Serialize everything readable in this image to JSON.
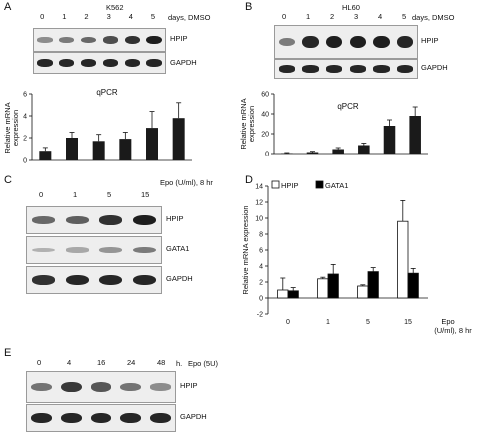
{
  "panels": {
    "A": {
      "letter": "A",
      "cell_line": "K562",
      "lanes": [
        "0",
        "1",
        "2",
        "3",
        "4",
        "5"
      ],
      "condition_label": "days, DMSO",
      "blots": [
        {
          "label": "HPIP",
          "intensities": [
            0.35,
            0.45,
            0.55,
            0.7,
            0.85,
            0.95
          ]
        },
        {
          "label": "GAPDH",
          "intensities": [
            0.9,
            0.9,
            0.9,
            0.9,
            0.9,
            0.9
          ]
        }
      ],
      "chart_title": "qPCR",
      "ylabel_line1": "Relative mRNA",
      "ylabel_line2": "expression"
    },
    "B": {
      "letter": "B",
      "cell_line": "HL60",
      "lanes": [
        "0",
        "1",
        "2",
        "3",
        "4",
        "5"
      ],
      "condition_label": "days, DMSO",
      "blots": [
        {
          "label": "HPIP",
          "intensities": [
            0.45,
            0.9,
            0.95,
            0.95,
            0.95,
            0.9
          ]
        },
        {
          "label": "GAPDH",
          "intensities": [
            0.9,
            0.9,
            0.9,
            0.9,
            0.9,
            0.9
          ]
        }
      ],
      "chart_title": "qPCR",
      "ylabel_line1": "Relative mRNA",
      "ylabel_line2": "expression"
    },
    "C": {
      "letter": "C",
      "lanes": [
        "0",
        "1",
        "5",
        "15"
      ],
      "condition_label": "Epo (U/ml), 8 hr",
      "blots": [
        {
          "label": "HPIP",
          "intensities": [
            0.55,
            0.6,
            0.85,
            0.95
          ]
        },
        {
          "label": "GATA1",
          "intensities": [
            0.15,
            0.2,
            0.3,
            0.45
          ]
        },
        {
          "label": "GAPDH",
          "intensities": [
            0.85,
            0.9,
            0.9,
            0.9
          ]
        }
      ]
    },
    "D": {
      "letter": "D",
      "ylabel": "Relative mRNA expression",
      "xlabel_line1": "Epo",
      "xlabel_line2": "(U/ml), 8 hr"
    },
    "E": {
      "letter": "E",
      "lanes": [
        "0",
        "4",
        "16",
        "24",
        "48"
      ],
      "time_unit": "h.",
      "condition_label": "Epo (5U)",
      "blots": [
        {
          "label": "HPIP",
          "intensities": [
            0.5,
            0.8,
            0.65,
            0.5,
            0.35
          ]
        },
        {
          "label": "GAPDH",
          "intensities": [
            0.9,
            0.9,
            0.9,
            0.9,
            0.9
          ]
        }
      ]
    }
  },
  "chart_data": [
    {
      "panel": "A",
      "type": "bar",
      "categories": [
        "0",
        "1",
        "2",
        "3",
        "4",
        "5"
      ],
      "values": [
        0.8,
        2.0,
        1.7,
        1.9,
        2.9,
        3.8
      ],
      "errors": [
        0.3,
        0.5,
        0.6,
        0.6,
        1.5,
        1.4
      ],
      "title": "qPCR",
      "ylabel": "Relative mRNA expression",
      "ylim": [
        0,
        6
      ],
      "yticks": [
        0,
        2,
        4,
        6
      ],
      "color": "#1a1a1a"
    },
    {
      "panel": "B",
      "type": "bar",
      "categories": [
        "0",
        "1",
        "2",
        "3",
        "4",
        "5"
      ],
      "values": [
        0.5,
        1.5,
        4.5,
        8.5,
        28,
        38
      ],
      "errors": [
        0.5,
        0.8,
        1.5,
        2,
        6,
        9
      ],
      "title": "qPCR",
      "ylabel": "Relative mRNA expression",
      "ylim": [
        0,
        60
      ],
      "yticks": [
        0,
        20,
        40,
        60
      ],
      "color": "#1a1a1a"
    },
    {
      "panel": "D",
      "type": "bar",
      "categories": [
        "0",
        "1",
        "5",
        "15"
      ],
      "series": [
        {
          "name": "HPIP",
          "values": [
            1.0,
            2.4,
            1.5,
            9.6
          ],
          "errors": [
            1.5,
            0.2,
            0.15,
            2.6
          ],
          "color": "#ffffff"
        },
        {
          "name": "GATA1",
          "values": [
            0.9,
            3.0,
            3.3,
            3.1
          ],
          "errors": [
            0.4,
            1.2,
            0.5,
            0.6
          ],
          "color": "#000000"
        }
      ],
      "ylabel": "Relative mRNA expression",
      "xlabel": "Epo (U/ml), 8 hr",
      "ylim": [
        -2,
        14
      ],
      "yticks": [
        -2,
        0,
        2,
        4,
        6,
        8,
        10,
        12,
        14
      ],
      "legend": "top-left"
    }
  ]
}
